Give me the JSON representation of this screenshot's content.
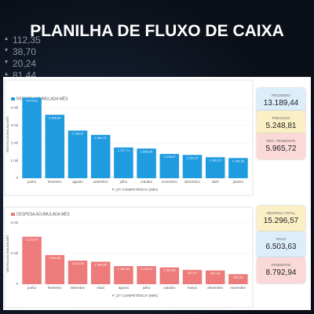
{
  "header": {
    "title": "PLANILHA DE FLUXO DE CAIXA"
  },
  "background_ticker": [
    "112,35",
    "38,70",
    "20,24",
    "81,44"
  ],
  "cards": [
    {
      "label": "RECEBIDO",
      "value": "13.189,44"
    },
    {
      "label": "PREVISÃO",
      "value": "5.248,81"
    },
    {
      "label": "REC. PENDENTE",
      "value": "5.965,72"
    },
    {
      "label": "DESPESA TOTAL",
      "value": "15.296,57"
    },
    {
      "label": "PAGO",
      "value": "6.503,63"
    },
    {
      "label": "PENDENTE",
      "value": "8.792,94"
    }
  ],
  "chart_data": [
    {
      "type": "bar",
      "y_label": "RECEITA ACUMULADA MÊS",
      "x_label": "P_DT COMPETÊNCIA (Mês)",
      "categories": [
        "junho",
        "fevereiro",
        "agosto",
        "setembro",
        "julho",
        "outubro",
        "novembro",
        "dezembro",
        "abril",
        "janeiro"
      ],
      "series": [
        {
          "name": "RECEITA ACUMULADA MÊS",
          "color": "#1f9be0",
          "values": [
            4579.51,
            3605.84,
            2708.57,
            2464.91,
            1747.71,
            1686.06,
            1378.87,
            1322.87,
            1190.13,
            1146.33
          ],
          "value_labels": [
            "4.579,51",
            "3.605,84",
            "2.708,57",
            "2.464,91",
            "1.747,71",
            "1.686,06",
            "1.378,87",
            "1.322,87",
            "1.190,13",
            "1.146,33"
          ]
        }
      ],
      "ylim": [
        0,
        5000
      ],
      "yticks": [
        0,
        {
          "value": 1000,
          "label": "1 mil"
        },
        {
          "value": 2000,
          "label": "2 mil"
        },
        {
          "value": 3000,
          "label": "3 mil"
        },
        {
          "value": 4000,
          "label": "4 mil"
        }
      ]
    },
    {
      "type": "bar",
      "y_label": "DESPESA ACUMULADA MÊS",
      "x_label": "P_DT COMPETÊNCIA (Mês)",
      "categories": [
        "junho",
        "fevereiro",
        "setembro",
        "maio",
        "agosto",
        "julho",
        "outubro",
        "março",
        "dezembro",
        "novembro"
      ],
      "series": [
        {
          "name": "DESPESA ACUMULADA MÊS",
          "color": "#ee7b7b",
          "values": [
            3102.97,
            1904.84,
            1543.03,
            1466.85,
            1180.63,
            1178.7,
            1092.96,
            932.97,
            897.44,
            653.2
          ],
          "value_labels": [
            "3.102,97",
            "1.904,84",
            "1.543,03",
            "1.466,85",
            "1.180,63",
            "1.178,70",
            "1.092,96",
            "932,97",
            "897,44",
            "653,20"
          ]
        }
      ],
      "ylim": [
        0,
        4000
      ],
      "yticks": [
        0,
        {
          "value": 2000,
          "label": "2 mil"
        },
        {
          "value": 4000,
          "label": "4 mil"
        }
      ]
    }
  ]
}
